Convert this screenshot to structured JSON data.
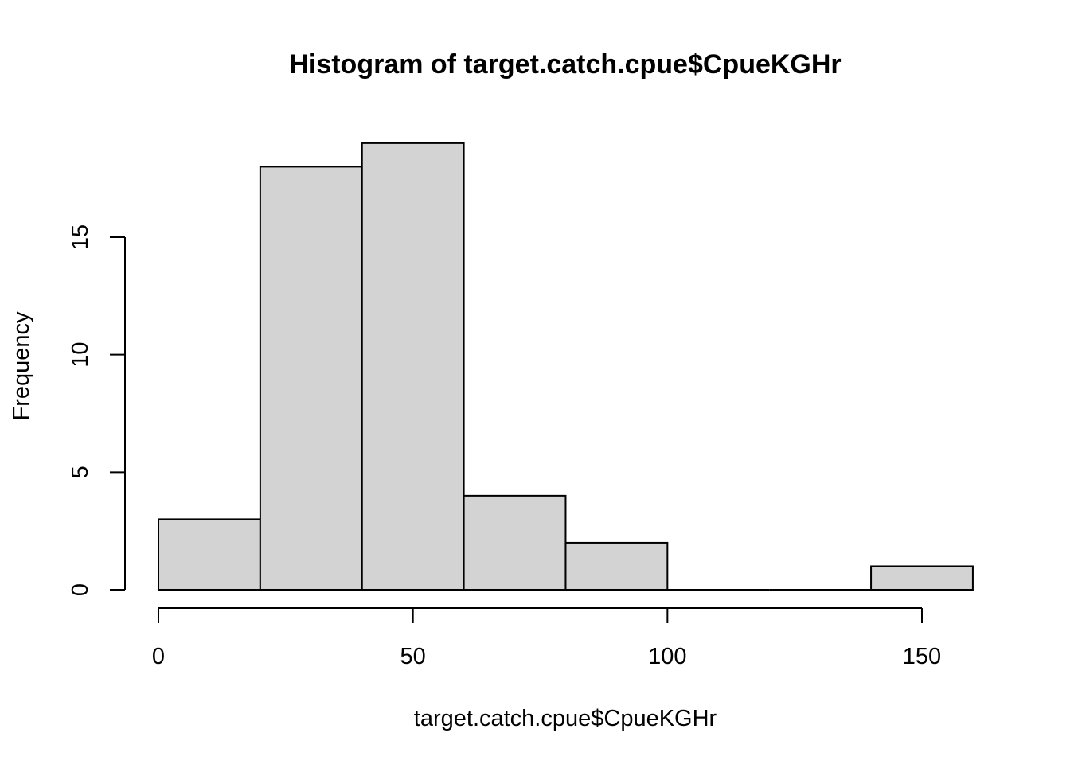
{
  "chart_data": {
    "type": "bar",
    "title": "Histogram of target.catch.cpue$CpueKGHr",
    "xlabel": "target.catch.cpue$CpueKGHr",
    "ylabel": "Frequency",
    "bins": [
      {
        "start": 0,
        "end": 20,
        "count": 3
      },
      {
        "start": 20,
        "end": 40,
        "count": 18
      },
      {
        "start": 40,
        "end": 60,
        "count": 19
      },
      {
        "start": 60,
        "end": 80,
        "count": 4
      },
      {
        "start": 80,
        "end": 100,
        "count": 2
      },
      {
        "start": 100,
        "end": 120,
        "count": 0
      },
      {
        "start": 120,
        "end": 140,
        "count": 0
      },
      {
        "start": 140,
        "end": 160,
        "count": 1
      }
    ],
    "x_ticks": [
      {
        "value": 0,
        "label": "0"
      },
      {
        "value": 50,
        "label": "50"
      },
      {
        "value": 100,
        "label": "100"
      },
      {
        "value": 150,
        "label": "150"
      }
    ],
    "y_ticks": [
      {
        "value": 0,
        "label": "0"
      },
      {
        "value": 5,
        "label": "5"
      },
      {
        "value": 10,
        "label": "10"
      },
      {
        "value": 15,
        "label": "15"
      }
    ],
    "xlim": [
      0,
      160
    ],
    "ylim": [
      0,
      19
    ],
    "grid": false,
    "legend": "none",
    "bar_color": "#d3d3d3",
    "edge_color": "#000000"
  }
}
